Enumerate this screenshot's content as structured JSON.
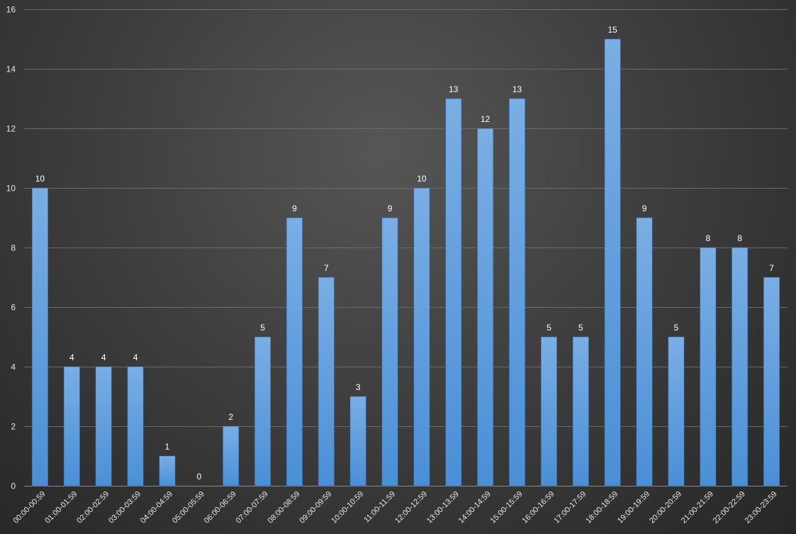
{
  "chart_data": {
    "type": "bar",
    "title": "",
    "xlabel": "",
    "ylabel": "",
    "ylim": [
      0,
      16
    ],
    "yticks": [
      0,
      2,
      4,
      6,
      8,
      10,
      12,
      14,
      16
    ],
    "grid": true,
    "legend": "none",
    "bar_color": "#5b9bd5",
    "categories": [
      "00:00-00:59",
      "01:00-01:59",
      "02:00-02:59",
      "03:00-03:59",
      "04:00-04:59",
      "05:00-05:59",
      "06:00-06:59",
      "07:00-07:59",
      "08:00-08:59",
      "09:00-09:59",
      "10:00-10:59",
      "11:00-11:59",
      "12:00-12:59",
      "13:00-13:59",
      "14:00-14:59",
      "15:00-15:59",
      "16:00-16:59",
      "17:00-17:59",
      "18:00-18:59",
      "19:00-19:59",
      "20:00-20:59",
      "21:00-21:59",
      "22:00-22:59",
      "23:00-23:59"
    ],
    "values": [
      10,
      4,
      4,
      4,
      1,
      0,
      2,
      5,
      9,
      7,
      3,
      9,
      10,
      13,
      12,
      13,
      5,
      5,
      15,
      9,
      5,
      8,
      8,
      7
    ]
  }
}
